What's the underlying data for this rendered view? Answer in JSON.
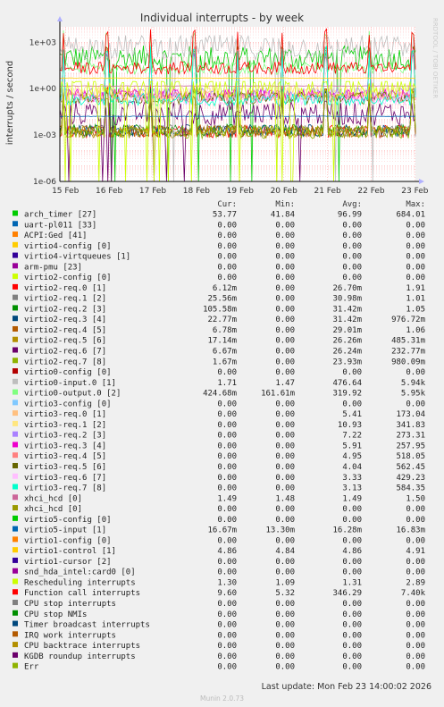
{
  "chart_data": {
    "type": "line",
    "title": "Individual interrupts - by week",
    "ylabel": "interrupts / second",
    "side_label": "RRDTOOL / TOBI OETIKER",
    "yscale": "log",
    "ylim": [
      1e-06,
      10000
    ],
    "yticks": [
      "1e-06",
      "1e-03",
      "1e+00",
      "1e+03"
    ],
    "x_ticks": [
      "15 Feb",
      "16 Feb",
      "17 Feb",
      "18 Feb",
      "19 Feb",
      "20 Feb",
      "21 Feb",
      "22 Feb",
      "23 Feb"
    ],
    "x_range": [
      "2026-02-14 14:00",
      "2026-02-23 14:00"
    ],
    "grid": true,
    "columns": [
      "Cur:",
      "Min:",
      "Avg:",
      "Max:"
    ],
    "series": [
      {
        "name": "arch_timer [27]",
        "color": "#00cc00",
        "cur": "53.77",
        "min": "41.84",
        "avg": "96.99",
        "max": "684.01"
      },
      {
        "name": "uart-pl011 [33]",
        "color": "#0066b3",
        "cur": "0.00",
        "min": "0.00",
        "avg": "0.00",
        "max": "0.00"
      },
      {
        "name": "ACPI:Ged [41]",
        "color": "#ff8000",
        "cur": "0.00",
        "min": "0.00",
        "avg": "0.00",
        "max": "0.00"
      },
      {
        "name": "virtio4-config [0]",
        "color": "#ffcc00",
        "cur": "0.00",
        "min": "0.00",
        "avg": "0.00",
        "max": "0.00"
      },
      {
        "name": "virtio4-virtqueues [1]",
        "color": "#330099",
        "cur": "0.00",
        "min": "0.00",
        "avg": "0.00",
        "max": "0.00"
      },
      {
        "name": "arm-pmu [23]",
        "color": "#990099",
        "cur": "0.00",
        "min": "0.00",
        "avg": "0.00",
        "max": "0.00"
      },
      {
        "name": "virtio2-config [0]",
        "color": "#ccff00",
        "cur": "0.00",
        "min": "0.00",
        "avg": "0.00",
        "max": "0.00"
      },
      {
        "name": "virtio2-req.0 [1]",
        "color": "#ff0000",
        "cur": "6.12m",
        "min": "0.00",
        "avg": "26.70m",
        "max": "1.91"
      },
      {
        "name": "virtio2-req.1 [2]",
        "color": "#808080",
        "cur": "25.56m",
        "min": "0.00",
        "avg": "30.98m",
        "max": "1.01"
      },
      {
        "name": "virtio2-req.2 [3]",
        "color": "#008f00",
        "cur": "105.58m",
        "min": "0.00",
        "avg": "31.42m",
        "max": "1.05"
      },
      {
        "name": "virtio2-req.3 [4]",
        "color": "#00487d",
        "cur": "22.77m",
        "min": "0.00",
        "avg": "31.42m",
        "max": "976.72m"
      },
      {
        "name": "virtio2-req.4 [5]",
        "color": "#b35a00",
        "cur": "6.78m",
        "min": "0.00",
        "avg": "29.01m",
        "max": "1.06"
      },
      {
        "name": "virtio2-req.5 [6]",
        "color": "#b38f00",
        "cur": "17.14m",
        "min": "0.00",
        "avg": "26.26m",
        "max": "485.31m"
      },
      {
        "name": "virtio2-req.6 [7]",
        "color": "#6b006b",
        "cur": "6.67m",
        "min": "0.00",
        "avg": "26.24m",
        "max": "232.77m"
      },
      {
        "name": "virtio2-req.7 [8]",
        "color": "#8fb300",
        "cur": "1.67m",
        "min": "0.00",
        "avg": "23.93m",
        "max": "980.09m"
      },
      {
        "name": "virtio0-config [0]",
        "color": "#b30000",
        "cur": "0.00",
        "min": "0.00",
        "avg": "0.00",
        "max": "0.00"
      },
      {
        "name": "virtio0-input.0 [1]",
        "color": "#bebebe",
        "cur": "1.71",
        "min": "1.47",
        "avg": "476.64",
        "max": "5.94k"
      },
      {
        "name": "virtio0-output.0 [2]",
        "color": "#80ff80",
        "cur": "424.68m",
        "min": "161.61m",
        "avg": "319.92",
        "max": "5.95k"
      },
      {
        "name": "virtio3-config [0]",
        "color": "#80c9ff",
        "cur": "0.00",
        "min": "0.00",
        "avg": "0.00",
        "max": "0.00"
      },
      {
        "name": "virtio3-req.0 [1]",
        "color": "#ffc080",
        "cur": "0.00",
        "min": "0.00",
        "avg": "5.41",
        "max": "173.04"
      },
      {
        "name": "virtio3-req.1 [2]",
        "color": "#ffe680",
        "cur": "0.00",
        "min": "0.00",
        "avg": "10.93",
        "max": "341.83"
      },
      {
        "name": "virtio3-req.2 [3]",
        "color": "#aa80ff",
        "cur": "0.00",
        "min": "0.00",
        "avg": "7.22",
        "max": "273.31"
      },
      {
        "name": "virtio3-req.3 [4]",
        "color": "#ee00cc",
        "cur": "0.00",
        "min": "0.00",
        "avg": "5.91",
        "max": "257.95"
      },
      {
        "name": "virtio3-req.4 [5]",
        "color": "#ff8080",
        "cur": "0.00",
        "min": "0.00",
        "avg": "4.95",
        "max": "518.05"
      },
      {
        "name": "virtio3-req.5 [6]",
        "color": "#666600",
        "cur": "0.00",
        "min": "0.00",
        "avg": "4.04",
        "max": "562.45"
      },
      {
        "name": "virtio3-req.6 [7]",
        "color": "#ffbfff",
        "cur": "0.00",
        "min": "0.00",
        "avg": "3.33",
        "max": "429.23"
      },
      {
        "name": "virtio3-req.7 [8]",
        "color": "#00ffcc",
        "cur": "0.00",
        "min": "0.00",
        "avg": "3.13",
        "max": "584.35"
      },
      {
        "name": "xhci_hcd [0]",
        "color": "#cc6699",
        "cur": "1.49",
        "min": "1.48",
        "avg": "1.49",
        "max": "1.50"
      },
      {
        "name": "xhci_hcd [0]",
        "color": "#999900",
        "cur": "0.00",
        "min": "0.00",
        "avg": "0.00",
        "max": "0.00"
      },
      {
        "name": "virtio5-config [0]",
        "color": "#00cc00",
        "cur": "0.00",
        "min": "0.00",
        "avg": "0.00",
        "max": "0.00"
      },
      {
        "name": "virtio5-input [1]",
        "color": "#0066b3",
        "cur": "16.67m",
        "min": "13.30m",
        "avg": "16.28m",
        "max": "16.83m"
      },
      {
        "name": "virtio1-config [0]",
        "color": "#ff8000",
        "cur": "0.00",
        "min": "0.00",
        "avg": "0.00",
        "max": "0.00"
      },
      {
        "name": "virtio1-control [1]",
        "color": "#ffcc00",
        "cur": "4.86",
        "min": "4.84",
        "avg": "4.86",
        "max": "4.91"
      },
      {
        "name": "virtio1-cursor [2]",
        "color": "#330099",
        "cur": "0.00",
        "min": "0.00",
        "avg": "0.00",
        "max": "0.00"
      },
      {
        "name": "snd_hda_intel:card0 [0]",
        "color": "#990099",
        "cur": "0.00",
        "min": "0.00",
        "avg": "0.00",
        "max": "0.00"
      },
      {
        "name": "Rescheduling interrupts",
        "color": "#ccff00",
        "cur": "1.30",
        "min": "1.09",
        "avg": "1.31",
        "max": "2.89"
      },
      {
        "name": "Function call interrupts",
        "color": "#ff0000",
        "cur": "9.60",
        "min": "5.32",
        "avg": "346.29",
        "max": "7.40k"
      },
      {
        "name": "CPU stop interrupts",
        "color": "#808080",
        "cur": "0.00",
        "min": "0.00",
        "avg": "0.00",
        "max": "0.00"
      },
      {
        "name": "CPU stop NMIs",
        "color": "#008f00",
        "cur": "0.00",
        "min": "0.00",
        "avg": "0.00",
        "max": "0.00"
      },
      {
        "name": "Timer broadcast interrupts",
        "color": "#00487d",
        "cur": "0.00",
        "min": "0.00",
        "avg": "0.00",
        "max": "0.00"
      },
      {
        "name": "IRQ work interrupts",
        "color": "#b35a00",
        "cur": "0.00",
        "min": "0.00",
        "avg": "0.00",
        "max": "0.00"
      },
      {
        "name": "CPU backtrace interrupts",
        "color": "#b38f00",
        "cur": "0.00",
        "min": "0.00",
        "avg": "0.00",
        "max": "0.00"
      },
      {
        "name": "KGDB roundup interrupts",
        "color": "#6b006b",
        "cur": "0.00",
        "min": "0.00",
        "avg": "0.00",
        "max": "0.00"
      },
      {
        "name": "Err",
        "color": "#8fb300",
        "cur": "0.00",
        "min": "0.00",
        "avg": "0.00",
        "max": "0.00"
      }
    ]
  },
  "footer": {
    "last_update": "Last update: Mon Feb 23 14:00:02 2026",
    "munin_version": "Munin 2.0.73"
  },
  "colors": {
    "background": "#f0f0f0",
    "plot_background": "#ffffff",
    "grid": "#ffaaaa",
    "axis": "#000000"
  }
}
